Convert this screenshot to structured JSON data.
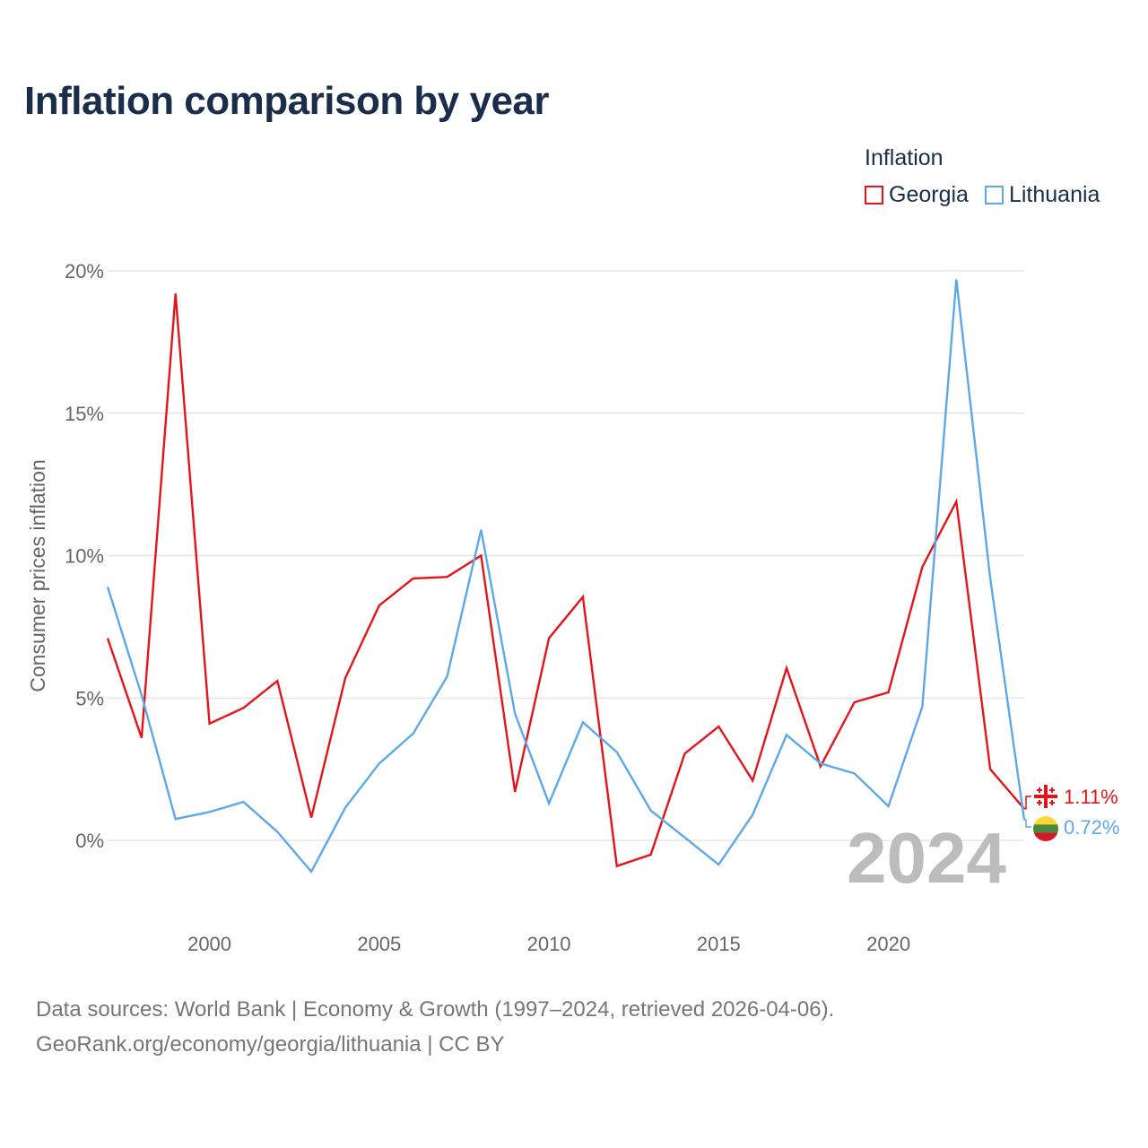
{
  "title": "Inflation comparison by year",
  "legend": {
    "title": "Inflation",
    "items": [
      {
        "label": "Georgia",
        "color": "#e4141b"
      },
      {
        "label": "Lithuania",
        "color": "#5da8e8"
      }
    ]
  },
  "chart_data": {
    "type": "line",
    "title": "Inflation comparison by year",
    "xlabel": "",
    "ylabel": "Consumer prices inflation",
    "x": [
      1997,
      1998,
      1999,
      2000,
      2001,
      2002,
      2003,
      2004,
      2005,
      2006,
      2007,
      2008,
      2009,
      2010,
      2011,
      2012,
      2013,
      2014,
      2015,
      2016,
      2017,
      2018,
      2019,
      2020,
      2021,
      2022,
      2023,
      2024
    ],
    "xlim": [
      1997,
      2024
    ],
    "ylim": [
      -2.2,
      20
    ],
    "xticks": [
      2000,
      2005,
      2010,
      2015,
      2020
    ],
    "xtick_labels": [
      "2000",
      "2005",
      "2010",
      "2015",
      "2020"
    ],
    "yticks": [
      0,
      5,
      10,
      15,
      20
    ],
    "ytick_labels": [
      "0%",
      "5%",
      "10%",
      "15%",
      "20%"
    ],
    "grid": true,
    "legend_position": "top-right",
    "series": [
      {
        "name": "Georgia",
        "color": "#e4141b",
        "values": [
          7.1,
          3.6,
          19.2,
          4.1,
          4.65,
          5.6,
          0.8,
          5.7,
          8.25,
          9.2,
          9.25,
          10.0,
          1.7,
          7.1,
          8.55,
          -0.9,
          -0.5,
          3.05,
          4.0,
          2.1,
          6.05,
          2.6,
          4.85,
          5.2,
          9.6,
          11.9,
          2.5,
          1.11
        ],
        "end_label": "1.11%"
      },
      {
        "name": "Lithuania",
        "color": "#5da8e8",
        "values": [
          8.9,
          5.1,
          0.75,
          1.0,
          1.35,
          0.3,
          -1.1,
          1.15,
          2.7,
          3.75,
          5.75,
          10.9,
          4.45,
          1.3,
          4.15,
          3.1,
          1.05,
          0.1,
          -0.85,
          0.9,
          3.7,
          2.7,
          2.35,
          1.2,
          4.7,
          19.7,
          9.2,
          0.72
        ],
        "end_label": "0.72%"
      }
    ],
    "annotation": "2024"
  },
  "sources": {
    "line1": "Data sources: World Bank | Economy & Growth (1997–2024, retrieved 2026-04-06).",
    "line2": "GeoRank.org/economy/georgia/lithuania | CC BY"
  }
}
